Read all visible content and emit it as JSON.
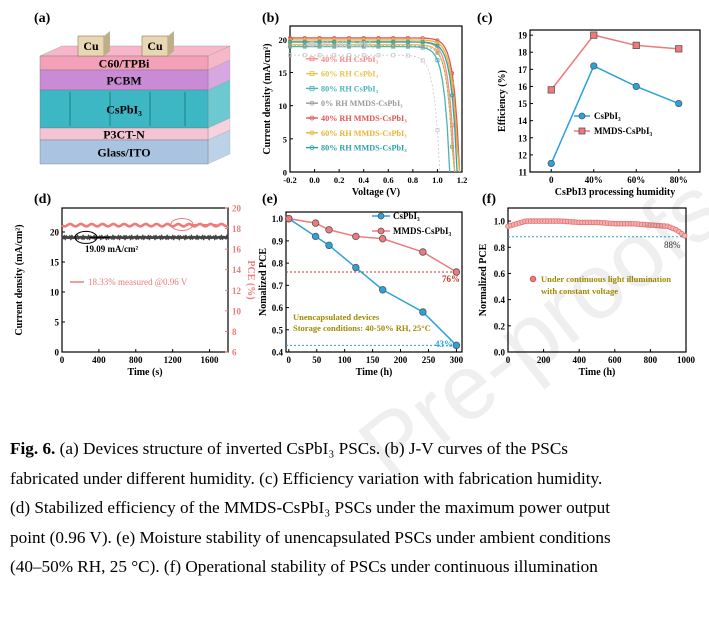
{
  "watermark": "Pre-proofs",
  "caption": {
    "lead": "Fig. 6.",
    "lines": [
      " (a) Devices structure of inverted CsPbI₃ PSCs. (b) J-V curves of the PSCs",
      "fabricated under different humidity. (c) Efficiency variation with fabrication humidity.",
      "(d) Stabilized efficiency of the MMDS-CsPbI₃ PSCs under the maximum power output",
      "point (0.96 V). (e) Moisture stability of unencapsulated PSCs under ambient conditions",
      "(40–50% RH, 25 °C). (f) Operational stability of PSCs under continuous illumination"
    ]
  },
  "panel_a": {
    "label": "(a)",
    "electrodes": [
      "Cu",
      "Cu"
    ],
    "layers": [
      "C60/TPBi",
      "PCBM",
      "CsPbI₃",
      "P3CT-N",
      "Glass/ITO"
    ]
  },
  "colors": {
    "pink": "#f07a7a",
    "pink_fill": "#f4a0a8",
    "blue": "#2aa3dc",
    "teal": "#28a7b5",
    "purple_layer": "#d58ad9",
    "teal_layer": "#3cb7c3",
    "glass": "#a9c3e0",
    "green_layer": "#aed6b4"
  },
  "chart_data": [
    {
      "panel": "(b)",
      "type": "line",
      "xlabel": "Voltage (V)",
      "ylabel": "Current density (mA/cm²)",
      "xlim": [
        -0.2,
        1.2
      ],
      "ylim": [
        0,
        20
      ],
      "xticks": [
        "-0.2",
        "0.0",
        "0.2",
        "0.4",
        "0.6",
        "0.8",
        "1.0",
        "1.2"
      ],
      "yticks": [
        "0",
        "5",
        "10",
        "15",
        "20"
      ],
      "series": [
        {
          "name": "0% RH CsPbI₃",
          "color": "#c9c9c9",
          "jsc": 17.6,
          "voc": 1.02
        },
        {
          "name": "40% RH CsPbI₃",
          "color": "#f28b8b",
          "jsc": 19.6,
          "voc": 1.14
        },
        {
          "name": "60% RH CsPbI₃",
          "color": "#e6c34a",
          "jsc": 19.2,
          "voc": 1.13
        },
        {
          "name": "80% RH CsPbI₃",
          "color": "#49b4b8",
          "jsc": 18.9,
          "voc": 1.1
        },
        {
          "name": "0% RH MMDS-CsPbI₃",
          "color": "#9a9a9a",
          "jsc": 19.0,
          "voc": 1.13
        },
        {
          "name": "40% RH MMDS-CsPbI₃",
          "color": "#e05555",
          "jsc": 20.2,
          "voc": 1.18
        },
        {
          "name": "60% RH MMDS-CsPbI₃",
          "color": "#e7b437",
          "jsc": 19.9,
          "voc": 1.17
        },
        {
          "name": "80% RH MMDS-CsPbI₃",
          "color": "#2aa3a8",
          "jsc": 19.6,
          "voc": 1.16
        }
      ]
    },
    {
      "panel": "(c)",
      "type": "line",
      "xlabel": "CsPbI3 processing humidity",
      "ylabel": "Efficiency (%)",
      "categories": [
        "0",
        "40%",
        "60%",
        "80%"
      ],
      "ylim": [
        11,
        19
      ],
      "yticks": [
        "11",
        "12",
        "13",
        "14",
        "15",
        "16",
        "17",
        "18",
        "19"
      ],
      "series": [
        {
          "name": "CsPbI₃",
          "color": "#2aa3dc",
          "values": [
            11.5,
            17.2,
            16.0,
            15.0
          ]
        },
        {
          "name": "MMDS-CsPbI₃",
          "color": "#f07a7a",
          "values": [
            15.8,
            19.0,
            18.4,
            18.2
          ]
        }
      ]
    },
    {
      "panel": "(d)",
      "type": "line",
      "xlabel": "Time (s)",
      "ylabel": "Current density (mA/cm²)",
      "ylabel2": "PCE (%)",
      "xlim": [
        0,
        1800
      ],
      "ylim": [
        0,
        25
      ],
      "y2lim": [
        6,
        20
      ],
      "xticks": [
        "0",
        "400",
        "800",
        "1200",
        "1600"
      ],
      "yticks": [
        "0",
        "5",
        "10",
        "15",
        "20"
      ],
      "y2ticks": [
        "6",
        "8",
        "10",
        "12",
        "14",
        "16",
        "18",
        "20"
      ],
      "annotations": [
        "19.09 mA/cm²",
        "18.33% measured @0.96 V"
      ],
      "series": [
        {
          "name": "Current density",
          "color": "#444444",
          "value": 19.09
        },
        {
          "name": "PCE",
          "color": "#f07a7a",
          "value": 18.33
        }
      ]
    },
    {
      "panel": "(e)",
      "type": "line",
      "xlabel": "Time (h)",
      "ylabel": "Nomalized PCE",
      "xlim": [
        0,
        300
      ],
      "ylim": [
        0.4,
        1.0
      ],
      "xticks": [
        "0",
        "50",
        "100",
        "150",
        "200",
        "250",
        "300"
      ],
      "yticks": [
        "0.4",
        "0.5",
        "0.6",
        "0.7",
        "0.8",
        "0.9",
        "1.0"
      ],
      "annotations": [
        "76%",
        "43%",
        "Unencapsulated devices",
        "Storage conditions: 40-50% RH, 25°C"
      ],
      "series": [
        {
          "name": "CsPbI₃",
          "color": "#2aa3dc",
          "x": [
            0,
            48,
            72,
            120,
            168,
            240,
            300
          ],
          "values": [
            1.0,
            0.92,
            0.88,
            0.78,
            0.68,
            0.58,
            0.43
          ]
        },
        {
          "name": "MMDS-CsPbI₃",
          "color": "#f07a7a",
          "x": [
            0,
            48,
            72,
            120,
            168,
            240,
            300
          ],
          "values": [
            1.0,
            0.98,
            0.95,
            0.92,
            0.91,
            0.85,
            0.76
          ]
        }
      ]
    },
    {
      "panel": "(f)",
      "type": "line",
      "xlabel": "Time (h)",
      "ylabel": "Normalized PCE",
      "xlim": [
        0,
        1000
      ],
      "ylim": [
        0,
        1.1
      ],
      "xticks": [
        "0",
        "200",
        "400",
        "600",
        "800",
        "1000"
      ],
      "yticks": [
        "0.0",
        "0.2",
        "0.4",
        "0.6",
        "0.8",
        "1.0"
      ],
      "annotations": [
        "88%"
      ],
      "legend": [
        "Under continuous light illumination",
        "with constant voltage"
      ],
      "series": [
        {
          "name": "Under continuous light illumination with constant voltage",
          "color": "#f07a7a",
          "x": [
            0,
            50,
            100,
            150,
            200,
            300,
            400,
            500,
            600,
            700,
            800,
            900,
            950,
            1000
          ],
          "values": [
            0.96,
            0.98,
            1.0,
            1.0,
            1.0,
            1.0,
            0.99,
            0.99,
            0.98,
            0.98,
            0.97,
            0.96,
            0.93,
            0.88
          ]
        }
      ]
    }
  ]
}
